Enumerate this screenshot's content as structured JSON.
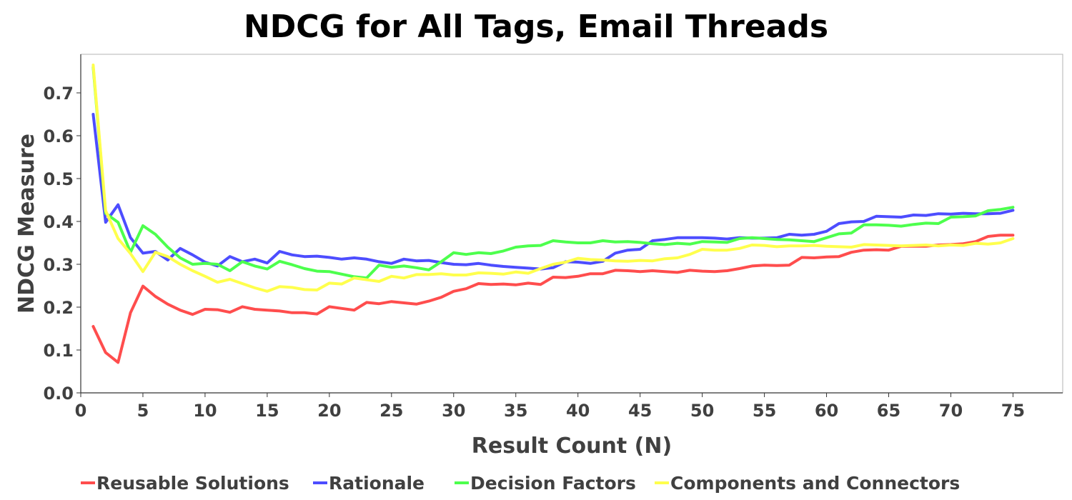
{
  "chart_data": {
    "type": "line",
    "title": "NDCG for All Tags, Email Threads",
    "xlabel": "Result Count (N)",
    "ylabel": "NDCG Measure",
    "xlim": [
      0,
      79
    ],
    "ylim": [
      0,
      0.79
    ],
    "xticks": [
      0,
      5,
      10,
      15,
      20,
      25,
      30,
      35,
      40,
      45,
      50,
      55,
      60,
      65,
      70,
      75
    ],
    "xtick_labels": [
      "0",
      "5",
      "10",
      "15",
      "20",
      "25",
      "30",
      "35",
      "40",
      "45",
      "50",
      "55",
      "60",
      "65",
      "70",
      "75"
    ],
    "yticks": [
      0.0,
      0.1,
      0.2,
      0.3,
      0.4,
      0.5,
      0.6,
      0.7
    ],
    "ytick_labels": [
      "0.0",
      "0.1",
      "0.2",
      "0.3",
      "0.4",
      "0.5",
      "0.6",
      "0.7"
    ],
    "grid": false,
    "legend_position": "bottom",
    "x": [
      1,
      2,
      3,
      4,
      5,
      6,
      7,
      8,
      9,
      10,
      11,
      12,
      13,
      14,
      15,
      16,
      17,
      18,
      19,
      20,
      21,
      22,
      23,
      24,
      25,
      26,
      27,
      28,
      29,
      30,
      31,
      32,
      33,
      34,
      35,
      36,
      37,
      38,
      39,
      40,
      41,
      42,
      43,
      44,
      45,
      46,
      47,
      48,
      49,
      50,
      51,
      52,
      53,
      54,
      55,
      56,
      57,
      58,
      59,
      60,
      61,
      62,
      63,
      64,
      65,
      66,
      67,
      68,
      69,
      70,
      71,
      72,
      73,
      74,
      75
    ],
    "series": [
      {
        "name": "Reusable Solutions",
        "color": "#ff4d4d",
        "values": [
          0.155,
          0.094,
          0.071,
          0.187,
          0.249,
          0.225,
          0.207,
          0.193,
          0.183,
          0.195,
          0.194,
          0.188,
          0.201,
          0.195,
          0.193,
          0.191,
          0.187,
          0.187,
          0.184,
          0.201,
          0.197,
          0.193,
          0.211,
          0.208,
          0.213,
          0.21,
          0.207,
          0.214,
          0.223,
          0.237,
          0.243,
          0.255,
          0.253,
          0.254,
          0.252,
          0.256,
          0.253,
          0.27,
          0.269,
          0.272,
          0.278,
          0.278,
          0.286,
          0.285,
          0.283,
          0.285,
          0.283,
          0.281,
          0.286,
          0.284,
          0.283,
          0.285,
          0.29,
          0.296,
          0.298,
          0.297,
          0.298,
          0.316,
          0.315,
          0.317,
          0.318,
          0.328,
          0.333,
          0.334,
          0.333,
          0.342,
          0.342,
          0.342,
          0.345,
          0.346,
          0.348,
          0.353,
          0.365,
          0.368,
          0.368
        ]
      },
      {
        "name": "Rationale",
        "color": "#4d4dff",
        "values": [
          0.65,
          0.398,
          0.439,
          0.362,
          0.326,
          0.33,
          0.31,
          0.337,
          0.322,
          0.305,
          0.296,
          0.318,
          0.306,
          0.312,
          0.303,
          0.33,
          0.322,
          0.318,
          0.319,
          0.316,
          0.312,
          0.315,
          0.312,
          0.306,
          0.302,
          0.312,
          0.308,
          0.309,
          0.304,
          0.3,
          0.299,
          0.302,
          0.298,
          0.295,
          0.293,
          0.291,
          0.289,
          0.292,
          0.306,
          0.305,
          0.302,
          0.307,
          0.326,
          0.333,
          0.335,
          0.355,
          0.358,
          0.362,
          0.362,
          0.362,
          0.361,
          0.359,
          0.362,
          0.361,
          0.361,
          0.362,
          0.37,
          0.368,
          0.37,
          0.377,
          0.395,
          0.399,
          0.4,
          0.412,
          0.411,
          0.41,
          0.415,
          0.414,
          0.418,
          0.417,
          0.419,
          0.418,
          0.418,
          0.419,
          0.426
        ]
      },
      {
        "name": "Decision Factors",
        "color": "#4dff4d",
        "values": [
          0.76,
          0.419,
          0.398,
          0.328,
          0.39,
          0.37,
          0.34,
          0.315,
          0.3,
          0.302,
          0.3,
          0.285,
          0.306,
          0.296,
          0.289,
          0.307,
          0.299,
          0.29,
          0.284,
          0.283,
          0.277,
          0.271,
          0.268,
          0.298,
          0.293,
          0.296,
          0.292,
          0.287,
          0.306,
          0.327,
          0.323,
          0.327,
          0.325,
          0.331,
          0.34,
          0.343,
          0.344,
          0.355,
          0.352,
          0.35,
          0.35,
          0.355,
          0.352,
          0.353,
          0.351,
          0.348,
          0.346,
          0.349,
          0.347,
          0.353,
          0.352,
          0.351,
          0.36,
          0.362,
          0.36,
          0.358,
          0.357,
          0.355,
          0.353,
          0.362,
          0.371,
          0.373,
          0.392,
          0.392,
          0.391,
          0.389,
          0.393,
          0.396,
          0.395,
          0.41,
          0.411,
          0.413,
          0.425,
          0.428,
          0.433
        ]
      },
      {
        "name": "Components and Connectors",
        "color": "#ffff4d",
        "values": [
          0.765,
          0.425,
          0.36,
          0.325,
          0.283,
          0.328,
          0.318,
          0.3,
          0.285,
          0.272,
          0.258,
          0.265,
          0.255,
          0.245,
          0.237,
          0.248,
          0.246,
          0.241,
          0.24,
          0.256,
          0.254,
          0.268,
          0.264,
          0.26,
          0.272,
          0.268,
          0.276,
          0.276,
          0.278,
          0.275,
          0.275,
          0.28,
          0.279,
          0.277,
          0.282,
          0.279,
          0.29,
          0.3,
          0.305,
          0.314,
          0.311,
          0.31,
          0.308,
          0.307,
          0.309,
          0.308,
          0.313,
          0.315,
          0.323,
          0.335,
          0.333,
          0.333,
          0.337,
          0.345,
          0.344,
          0.341,
          0.343,
          0.343,
          0.344,
          0.342,
          0.341,
          0.34,
          0.346,
          0.345,
          0.344,
          0.343,
          0.344,
          0.345,
          0.343,
          0.345,
          0.344,
          0.349,
          0.347,
          0.35,
          0.36
        ]
      }
    ]
  }
}
